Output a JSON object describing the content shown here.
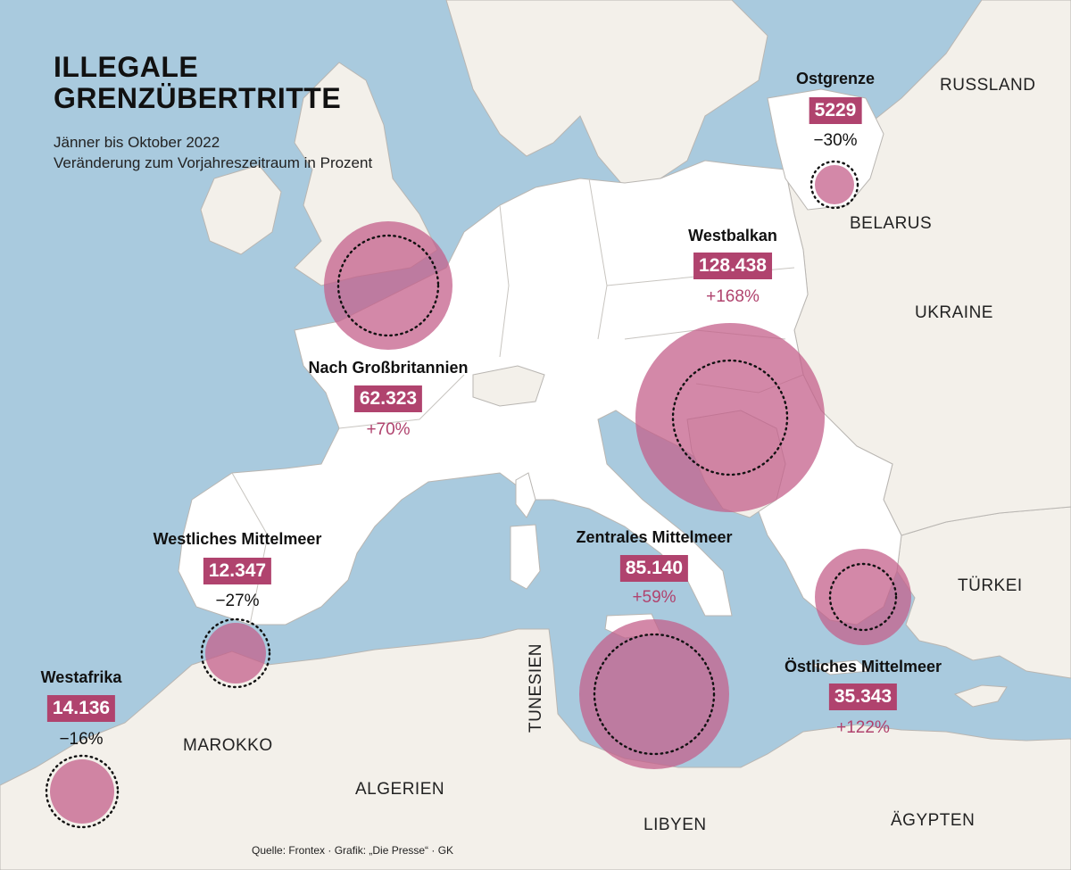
{
  "title_line1": "ILLEGALE",
  "title_line2": "GRENZÜBERTRITTE",
  "subtitle_line1": "Jänner bis Oktober 2022",
  "subtitle_line2": "Veränderung zum Vorjahreszeitraum in Prozent",
  "colors": {
    "sea": "#a9cade",
    "land_highlight": "#ffffff",
    "land_other": "#f3f0ea",
    "border": "#b9b6b2",
    "bubble": "#c4608b",
    "badge": "#b0436e",
    "increase_text": "#b0436e",
    "decrease_text": "#111111"
  },
  "routes": [
    {
      "id": "ostgrenze",
      "name": "Ostgrenze",
      "count": "5229",
      "change": "−30%",
      "trend": "decrease"
    },
    {
      "id": "westbalkan",
      "name": "Westbalkan",
      "count": "128.438",
      "change": "+168%",
      "trend": "increase"
    },
    {
      "id": "grossbritannien",
      "name": "Nach Großbritannien",
      "count": "62.323",
      "change": "+70%",
      "trend": "increase"
    },
    {
      "id": "westliches",
      "name": "Westliches Mittelmeer",
      "count": "12.347",
      "change": "−27%",
      "trend": "decrease"
    },
    {
      "id": "zentrales",
      "name": "Zentrales Mittelmeer",
      "count": "85.140",
      "change": "+59%",
      "trend": "increase"
    },
    {
      "id": "oestliches",
      "name": "Östliches Mittelmeer",
      "count": "35.343",
      "change": "+122%",
      "trend": "increase"
    },
    {
      "id": "westafrika",
      "name": "Westafrika",
      "count": "14.136",
      "change": "−16%",
      "trend": "decrease"
    }
  ],
  "countries": {
    "russland": "RUSSLAND",
    "belarus": "BELARUS",
    "ukraine": "UKRAINE",
    "tuerkei": "TÜRKEI",
    "tunesien": "TUNESIEN",
    "marokko": "MAROKKO",
    "algerien": "ALGERIEN",
    "libyen": "LIBYEN",
    "aegypten": "ÄGYPTEN"
  },
  "source": "Quelle: Frontex · Grafik: „Die Presse“ · GK"
}
